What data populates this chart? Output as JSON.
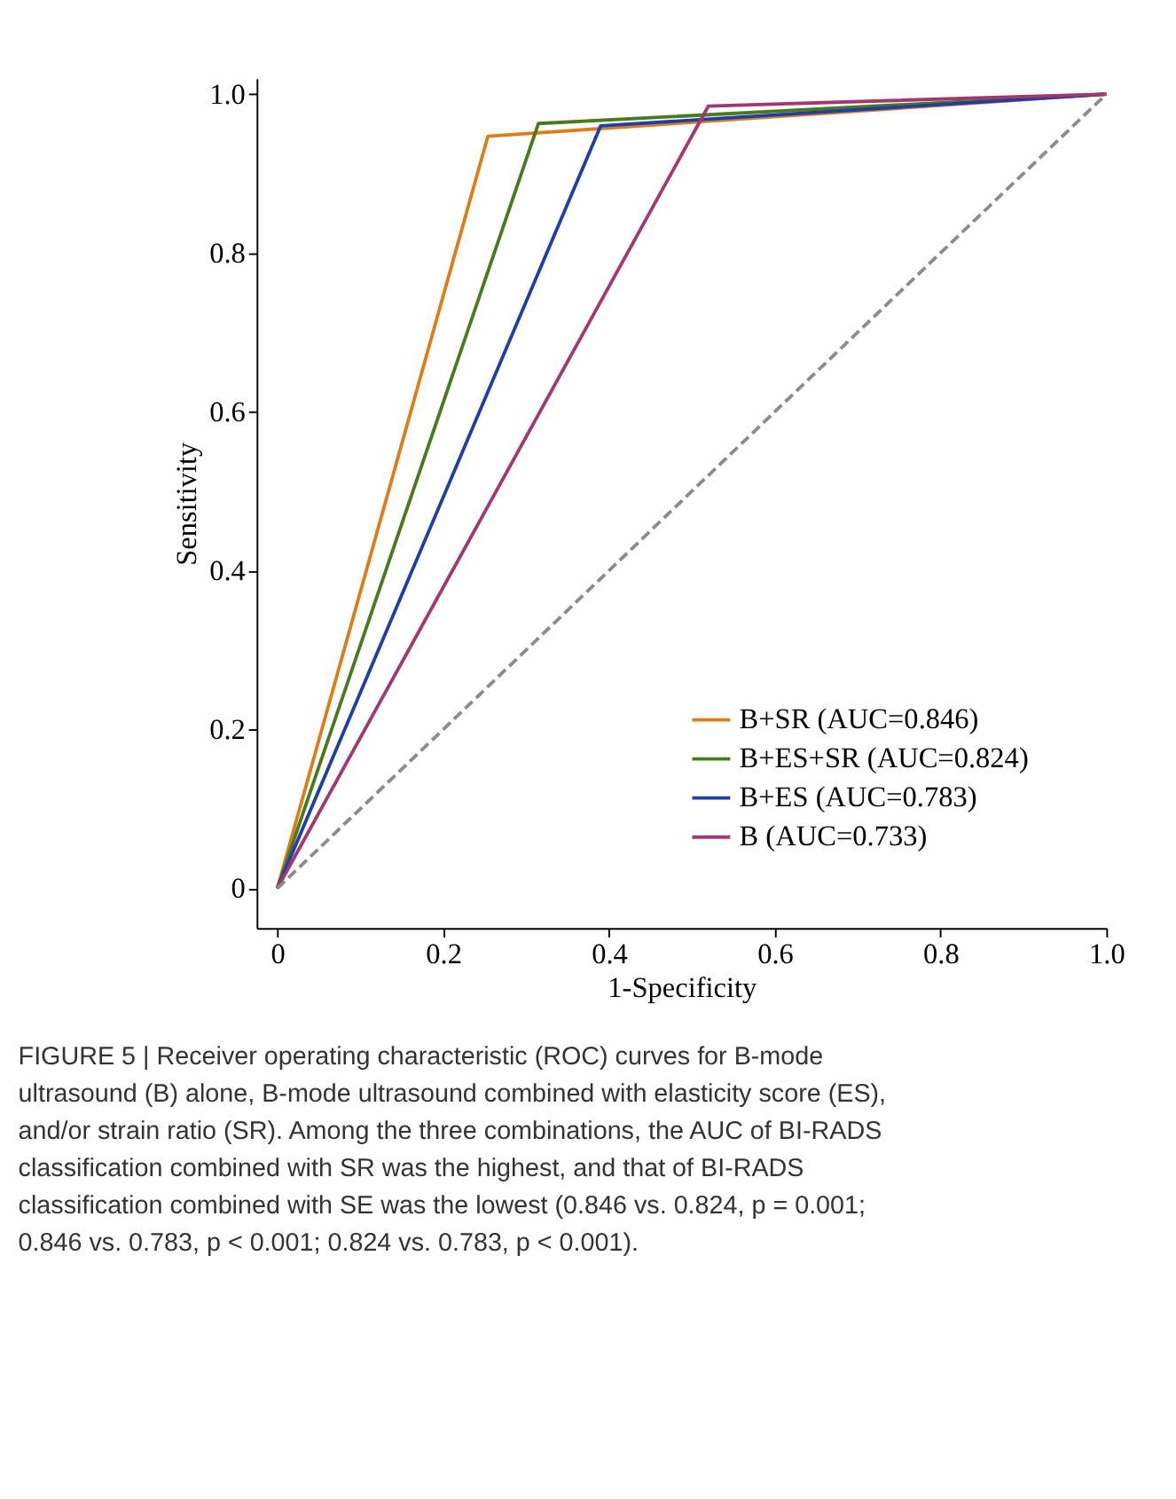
{
  "chart_data": {
    "type": "line",
    "xlabel": "1-Specificity",
    "ylabel": "Sensitivity",
    "xlim": [
      -0.025,
      1.0
    ],
    "ylim": [
      -0.05,
      1.02
    ],
    "xticks": [
      {
        "value": 0,
        "label": "0"
      },
      0.2,
      0.4,
      0.6,
      0.8,
      {
        "value": 1,
        "label": "1.0"
      }
    ],
    "yticks": [
      {
        "value": 0,
        "label": "0"
      },
      0.2,
      0.4,
      0.6,
      0.8,
      {
        "value": 1,
        "label": "1.0"
      }
    ],
    "grid": false,
    "legend": "bottom right",
    "marker": "none",
    "line_style": "solid",
    "series": [
      {
        "name": "B+SR (AUC=0.846)",
        "color": "#e07b1a",
        "x": [
          0,
          0.254,
          1
        ],
        "values": [
          0,
          0.947,
          1
        ]
      },
      {
        "name": "B+ES+SR (AUC=0.824)",
        "color": "#4a7a1e",
        "x": [
          0,
          0.315,
          1
        ],
        "values": [
          0,
          0.963,
          1
        ]
      },
      {
        "name": "B+ES (AUC=0.783)",
        "color": "#1f3fa6",
        "x": [
          0,
          0.39,
          1
        ],
        "values": [
          0,
          0.96,
          1
        ]
      },
      {
        "name": "B (AUC=0.733)",
        "color": "#a3386e",
        "x": [
          0,
          0.52,
          1
        ],
        "values": [
          0,
          0.985,
          1
        ]
      },
      {
        "color": "#8c8c8c",
        "x": [
          0,
          1
        ],
        "values": [
          0,
          1
        ],
        "line_style": "dashed"
      }
    ],
    "annotations": [
      "FIGURE 5 | Receiver operating characteristic (ROC) curves for B-mode ultrasound (B) alone, B-mode ultrasound combined with elasticity score (ES), and/or strain ratio (SR). Among the three combinations, the AUC of BI-RADS classification combined with SR was the highest, and that of BI-RADS classification combined with SE was the lowest (0.846 vs. 0.824, p = 0.001; 0.846 vs. 0.783, p < 0.001; 0.824 vs. 0.783, p < 0.001)."
    ]
  }
}
